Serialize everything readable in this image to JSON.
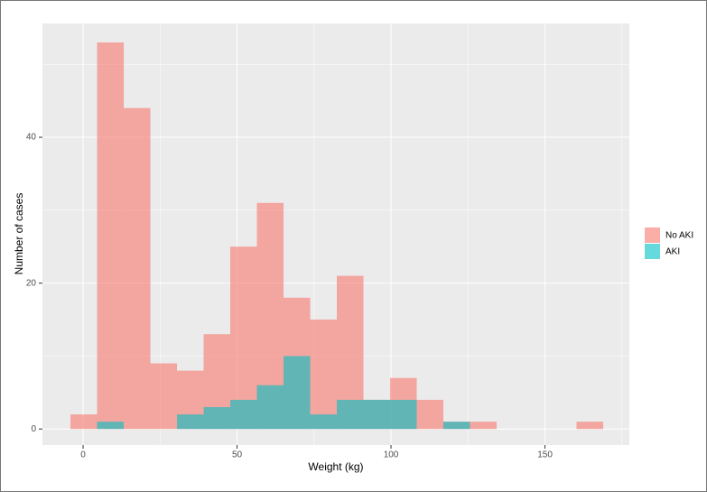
{
  "chart_data": {
    "type": "histogram",
    "x_label": "Weight (kg)",
    "y_label": "Number of cases",
    "bins": [
      -4.1,
      4.55,
      13.2,
      21.85,
      30.5,
      39.15,
      47.8,
      56.45,
      65.1,
      73.75,
      82.4,
      91.05,
      99.7,
      108.35,
      117.0,
      125.65,
      134.3,
      142.95,
      151.6,
      160.25,
      168.9
    ],
    "series": [
      {
        "name": "No AKI",
        "color": "#F8766D",
        "values": [
          2,
          53,
          44,
          9,
          8,
          13,
          25,
          31,
          18,
          15,
          21,
          4,
          7,
          4,
          1,
          1,
          0,
          0,
          0,
          1
        ]
      },
      {
        "name": "AKI",
        "color": "#00BFC4",
        "values": [
          0,
          1,
          0,
          0,
          2,
          3,
          4,
          6,
          10,
          2,
          4,
          4,
          4,
          0,
          1,
          0,
          0,
          0,
          0,
          0
        ]
      }
    ],
    "xlim": [
      -13.2,
      177.4
    ],
    "ylim": [
      -2.2,
      55.6
    ],
    "xticks": [
      0,
      50,
      100,
      150
    ],
    "yticks": [
      0,
      20,
      40
    ],
    "grid": true,
    "legend": "right"
  }
}
